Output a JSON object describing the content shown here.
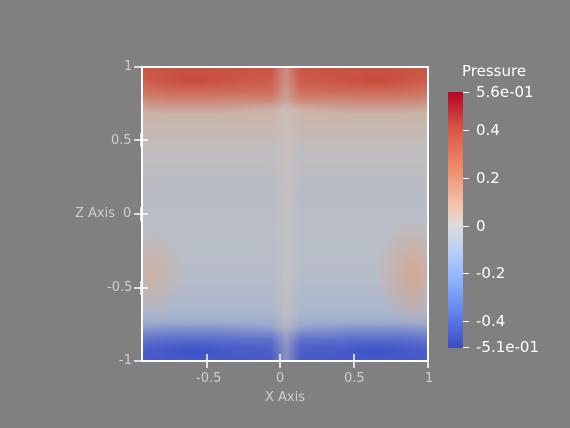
{
  "scalar_field": "Pressure",
  "colorbar": {
    "title": "Pressure",
    "max_label": "5.6e-01",
    "min_label": "-5.1e-01",
    "ticks": [
      "0.4",
      "0.2",
      "0",
      "-0.2",
      "-0.4"
    ],
    "colormap": "cool-to-warm",
    "colors": {
      "high": "#b40426",
      "mid": "#dddddd",
      "low": "#3b4cc0"
    }
  },
  "axes": {
    "x_title": "X Axis",
    "z_title": "Z Axis",
    "x_ticks": [
      "-0.5",
      "0",
      "0.5",
      "1"
    ],
    "z_ticks": [
      "1",
      "0.5",
      "0",
      "-0.5",
      "-1"
    ]
  },
  "colors": {
    "background": "#808080",
    "frame": "#ffffff",
    "axis_text": "#cfcfcf"
  }
}
